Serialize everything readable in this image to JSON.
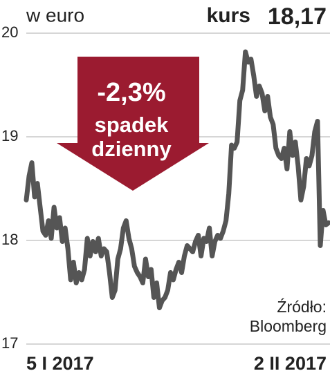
{
  "chart_data": {
    "type": "line",
    "unit_label": "w euro",
    "current_label": "kurs",
    "current_value": "18,17",
    "badge": {
      "change": "-2,3%",
      "line1": "spadek",
      "line2": "dzienny"
    },
    "source": {
      "line1": "Źródło:",
      "line2": "Bloomberg"
    },
    "categories": [
      "5 I 2017",
      null,
      null,
      null,
      null,
      null,
      null,
      null,
      null,
      null,
      null,
      null,
      null,
      null,
      null,
      null,
      null,
      null,
      null,
      null,
      null,
      null,
      null,
      null,
      null,
      null,
      null,
      null,
      null,
      null,
      null,
      null,
      null,
      null,
      null,
      null,
      null,
      null,
      null,
      null,
      null,
      null,
      null,
      null,
      null,
      null,
      null,
      null,
      null,
      null,
      null,
      null,
      null,
      null,
      null,
      null,
      null,
      null,
      null,
      null,
      null,
      null,
      null,
      null,
      null,
      null,
      null,
      null,
      null,
      null,
      null,
      null,
      null,
      null,
      null,
      null,
      null,
      null,
      null,
      null,
      null,
      null,
      null,
      null,
      null,
      null,
      null,
      null,
      null,
      null,
      null,
      null,
      null,
      null,
      null,
      null,
      null,
      null,
      null,
      null,
      null,
      null,
      null,
      null,
      null,
      null,
      null,
      null,
      null,
      "2 II 2017"
    ],
    "values": [
      18.39,
      18.62,
      18.75,
      18.42,
      18.55,
      18.32,
      18.09,
      18.05,
      18.19,
      18.02,
      18.32,
      18.12,
      18.22,
      17.99,
      18.12,
      17.92,
      17.62,
      17.79,
      17.59,
      17.69,
      17.62,
      17.72,
      18.02,
      17.85,
      17.99,
      17.89,
      18.02,
      17.85,
      17.92,
      17.89,
      17.69,
      17.45,
      17.52,
      17.82,
      17.92,
      18.12,
      18.19,
      18.02,
      17.92,
      17.75,
      17.69,
      17.65,
      17.59,
      17.82,
      17.65,
      17.72,
      17.45,
      17.59,
      17.35,
      17.42,
      17.45,
      17.52,
      17.69,
      17.62,
      17.72,
      17.79,
      17.69,
      17.85,
      17.95,
      17.92,
      17.89,
      17.99,
      18.05,
      17.85,
      18.02,
      17.99,
      18.12,
      17.85,
      17.99,
      18.05,
      18.02,
      18.09,
      18.19,
      18.45,
      18.92,
      18.89,
      18.95,
      19.35,
      19.45,
      19.82,
      19.72,
      19.75,
      19.59,
      19.39,
      19.49,
      19.42,
      19.25,
      19.39,
      19.19,
      19.12,
      18.89,
      18.82,
      18.79,
      18.89,
      18.69,
      19.05,
      18.82,
      18.95,
      18.72,
      18.39,
      18.52,
      18.79,
      18.72,
      18.82,
      19.05,
      19.15,
      17.95,
      18.29,
      18.15,
      18.17
    ],
    "color": "#555555",
    "badge_color": "#9b1b30",
    "ylim": [
      17,
      20
    ],
    "yticks": [
      17,
      18,
      19,
      20
    ],
    "grid": true
  }
}
